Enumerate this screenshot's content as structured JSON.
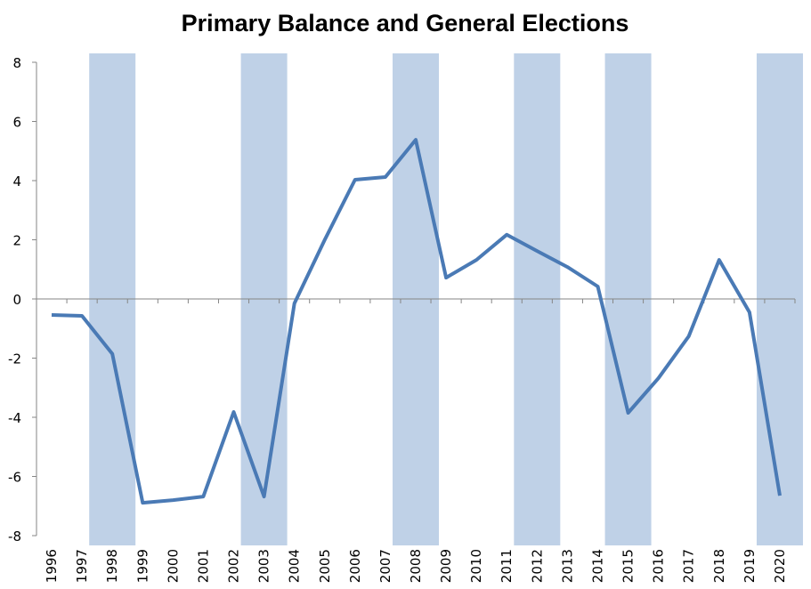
{
  "chart_data": {
    "type": "line",
    "title": "Primary Balance and General Elections",
    "xlabel": "",
    "ylabel": "",
    "ylim": [
      -8,
      8
    ],
    "yticks": [
      "8",
      "6",
      "4",
      "2",
      "0",
      "-2",
      "-4",
      "-6",
      "-8"
    ],
    "ytick_values": [
      8,
      6,
      4,
      2,
      0,
      -2,
      -4,
      -6,
      -8
    ],
    "categories": [
      "1996",
      "1997",
      "1998",
      "1999",
      "2000",
      "2001",
      "2002",
      "2003",
      "2004",
      "2005",
      "2006",
      "2007",
      "2008",
      "2009",
      "2010",
      "2011",
      "2012",
      "2013",
      "2014",
      "2015",
      "2016",
      "2017",
      "2018",
      "2019",
      "2020"
    ],
    "series": [
      {
        "name": "Primary Balance",
        "color": "#4a7ab5",
        "values": [
          -0.54,
          -0.57,
          -1.86,
          -6.89,
          -6.8,
          -6.68,
          -3.82,
          -6.68,
          -0.15,
          2.0,
          4.03,
          4.12,
          5.38,
          0.72,
          1.32,
          2.17,
          1.62,
          1.08,
          0.42,
          -3.85,
          -2.68,
          -1.26,
          1.32,
          -0.45,
          -6.65
        ]
      }
    ],
    "election_years": [
      "1998",
      "2003",
      "2008",
      "2012",
      "2015",
      "2020"
    ],
    "band_color": "#bfd1e7",
    "grid": false,
    "legend": "none"
  }
}
